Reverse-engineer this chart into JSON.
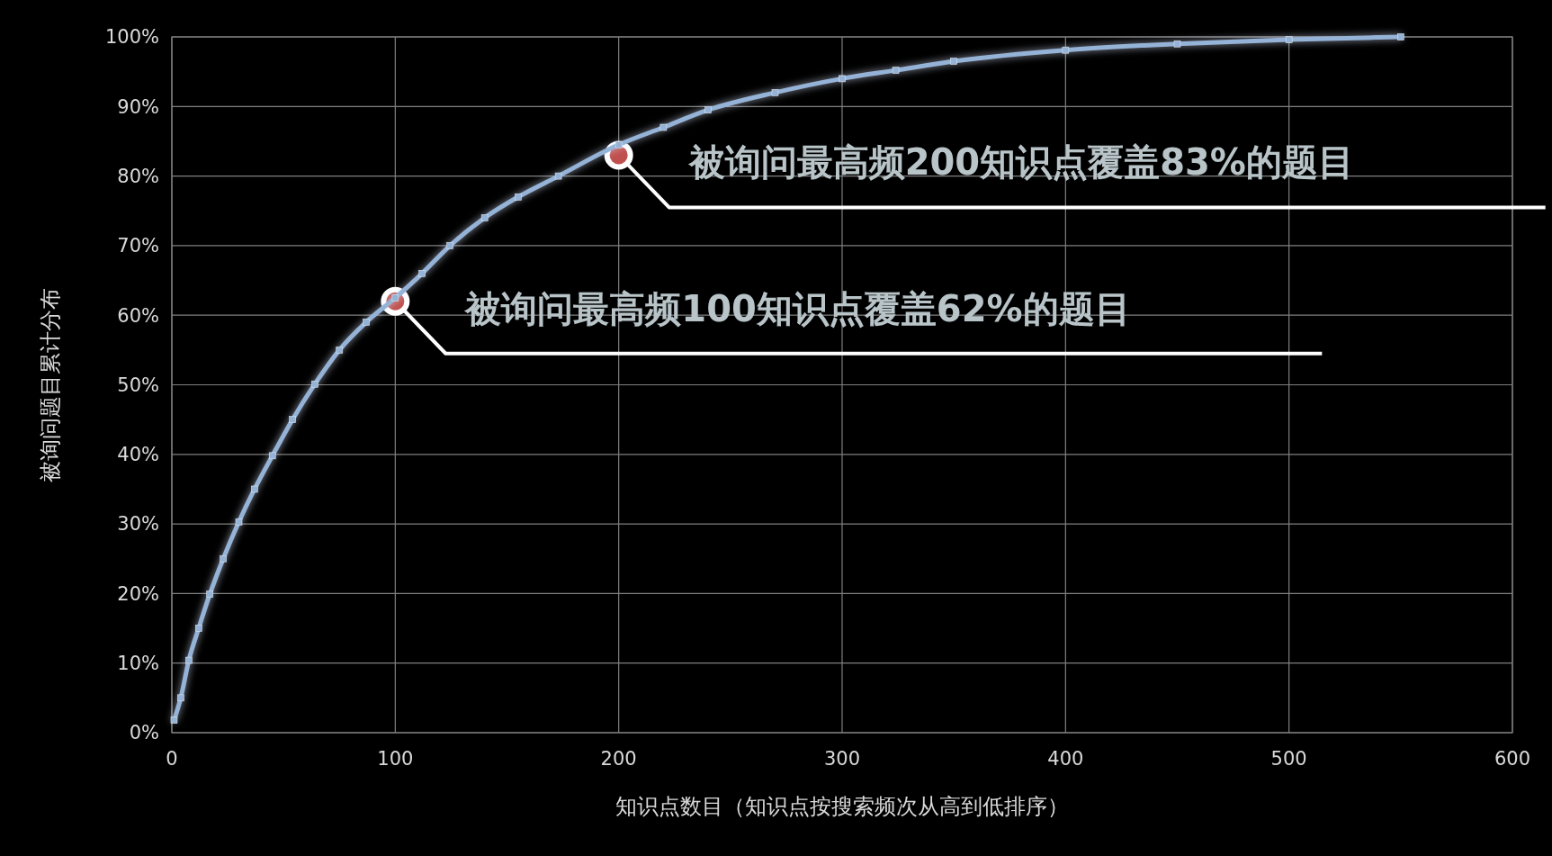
{
  "chart_data": {
    "type": "line",
    "xlabel": "知识点数目（知识点按搜索频次从高到低排序）",
    "ylabel": "被询问题目累计分布",
    "xlim": [
      0,
      600
    ],
    "xticks": [
      0,
      100,
      200,
      300,
      400,
      500,
      600
    ],
    "ylim": [
      0,
      100
    ],
    "yticks": [
      {
        "value": 0,
        "label": "0%"
      },
      {
        "value": 10,
        "label": "10%"
      },
      {
        "value": 20,
        "label": "20%"
      },
      {
        "value": 30,
        "label": "30%"
      },
      {
        "value": 40,
        "label": "40%"
      },
      {
        "value": 50,
        "label": "50%"
      },
      {
        "value": 60,
        "label": "60%"
      },
      {
        "value": 70,
        "label": "70%"
      },
      {
        "value": 80,
        "label": "80%"
      },
      {
        "value": 90,
        "label": "90%"
      },
      {
        "value": 100,
        "label": "100%"
      }
    ],
    "grid": true,
    "marker": "square",
    "series": [
      {
        "color": "#95b3d7",
        "x": [
          1,
          4,
          7.6,
          12,
          17,
          23,
          30,
          37,
          45,
          54,
          64,
          75,
          87,
          100,
          112,
          124.5,
          140,
          155,
          173,
          200,
          220,
          240,
          270,
          300,
          324,
          350,
          400,
          450,
          500,
          550
        ],
        "values": [
          1.8,
          5,
          10.4,
          15,
          19.9,
          25,
          30.3,
          35,
          39.8,
          45,
          50.1,
          55,
          59,
          62.5,
          66,
          70,
          74,
          77,
          80,
          84.5,
          87,
          89.5,
          92,
          94,
          95.2,
          96.5,
          98.1,
          99,
          99.6,
          100
        ]
      }
    ],
    "annotations": [
      {
        "text": "被询问最高频100知识点覆盖62%的题目",
        "x": 100,
        "y": 62
      },
      {
        "text": "被询问最高频200知识点覆盖83%的题目",
        "x": 200,
        "y": 83
      }
    ]
  }
}
